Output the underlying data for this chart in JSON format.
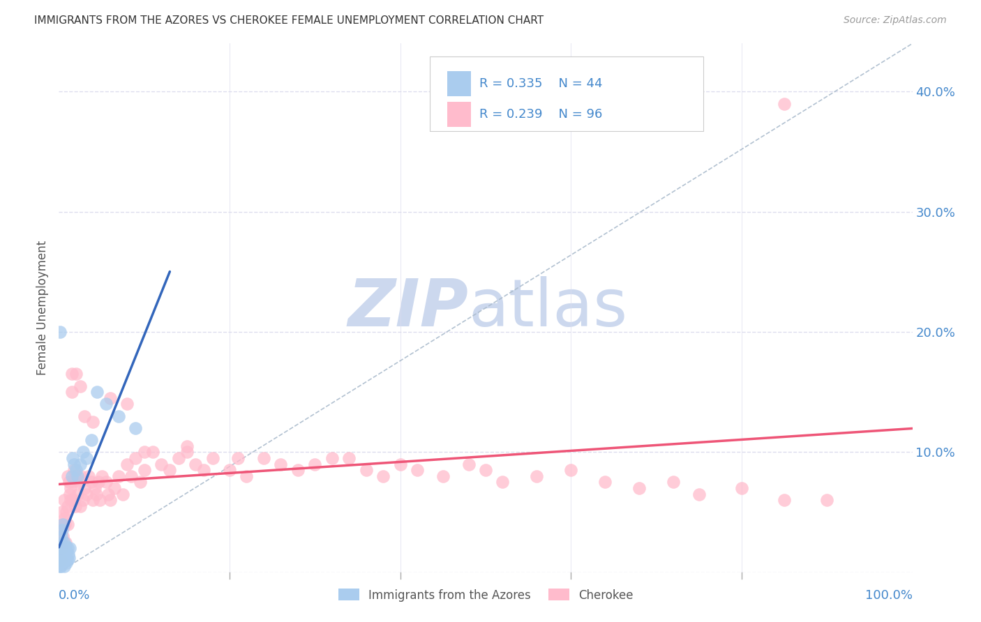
{
  "title": "IMMIGRANTS FROM THE AZORES VS CHEROKEE FEMALE UNEMPLOYMENT CORRELATION CHART",
  "source": "Source: ZipAtlas.com",
  "ylabel": "Female Unemployment",
  "series1_label": "Immigrants from the Azores",
  "series1_color": "#aaccee",
  "series1_edge": "#aaccee",
  "series1_R": 0.335,
  "series1_N": 44,
  "series2_label": "Cherokee",
  "series2_color": "#ffbbcc",
  "series2_edge": "#ffbbcc",
  "series2_R": 0.239,
  "series2_N": 96,
  "trend1_color": "#3366bb",
  "trend2_color": "#ee5577",
  "watermark_zip_color": "#ccd8ee",
  "watermark_atlas_color": "#ccd8ee",
  "ref_line_color": "#aabbcc",
  "grid_color": "#ddddee",
  "xlim": [
    0.0,
    1.0
  ],
  "ylim": [
    0.0,
    0.44
  ],
  "yticks": [
    0.0,
    0.1,
    0.2,
    0.3,
    0.4
  ],
  "ytick_labels": [
    "",
    "10.0%",
    "20.0%",
    "30.0%",
    "40.0%"
  ],
  "title_color": "#333333",
  "source_color": "#999999",
  "axis_label_color": "#4488cc",
  "ylabel_color": "#555555",
  "legend_text_color": "#4488cc",
  "bottom_legend_color": "#555555",
  "series1_x": [
    0.001,
    0.001,
    0.001,
    0.001,
    0.002,
    0.002,
    0.002,
    0.003,
    0.003,
    0.003,
    0.004,
    0.004,
    0.004,
    0.005,
    0.005,
    0.005,
    0.006,
    0.006,
    0.006,
    0.007,
    0.007,
    0.008,
    0.008,
    0.009,
    0.009,
    0.01,
    0.01,
    0.011,
    0.012,
    0.013,
    0.015,
    0.016,
    0.018,
    0.02,
    0.022,
    0.025,
    0.028,
    0.032,
    0.038,
    0.045,
    0.055,
    0.07,
    0.09,
    0.001
  ],
  "series1_y": [
    0.005,
    0.01,
    0.015,
    0.02,
    0.005,
    0.012,
    0.025,
    0.008,
    0.018,
    0.03,
    0.01,
    0.022,
    0.035,
    0.008,
    0.015,
    0.04,
    0.005,
    0.01,
    0.025,
    0.01,
    0.018,
    0.012,
    0.022,
    0.008,
    0.018,
    0.01,
    0.02,
    0.015,
    0.012,
    0.02,
    0.08,
    0.095,
    0.09,
    0.085,
    0.08,
    0.09,
    0.1,
    0.095,
    0.11,
    0.15,
    0.14,
    0.13,
    0.12,
    0.2
  ],
  "series2_x": [
    0.001,
    0.002,
    0.003,
    0.004,
    0.005,
    0.006,
    0.007,
    0.008,
    0.009,
    0.01,
    0.01,
    0.012,
    0.013,
    0.014,
    0.015,
    0.016,
    0.017,
    0.018,
    0.019,
    0.02,
    0.022,
    0.024,
    0.025,
    0.026,
    0.028,
    0.03,
    0.032,
    0.035,
    0.038,
    0.04,
    0.042,
    0.044,
    0.046,
    0.048,
    0.05,
    0.055,
    0.058,
    0.06,
    0.065,
    0.07,
    0.075,
    0.08,
    0.085,
    0.09,
    0.095,
    0.1,
    0.11,
    0.12,
    0.13,
    0.14,
    0.15,
    0.16,
    0.17,
    0.18,
    0.2,
    0.21,
    0.22,
    0.24,
    0.26,
    0.28,
    0.3,
    0.32,
    0.34,
    0.36,
    0.38,
    0.4,
    0.42,
    0.45,
    0.48,
    0.5,
    0.52,
    0.56,
    0.6,
    0.64,
    0.68,
    0.72,
    0.75,
    0.8,
    0.85,
    0.9,
    0.002,
    0.015,
    0.02,
    0.025,
    0.01,
    0.007,
    0.03,
    0.04,
    0.06,
    0.08,
    0.014,
    0.018,
    0.1,
    0.15,
    0.002,
    0.85
  ],
  "series2_y": [
    0.03,
    0.04,
    0.02,
    0.05,
    0.03,
    0.06,
    0.04,
    0.025,
    0.05,
    0.04,
    0.055,
    0.075,
    0.065,
    0.06,
    0.165,
    0.06,
    0.075,
    0.085,
    0.055,
    0.08,
    0.065,
    0.075,
    0.055,
    0.08,
    0.06,
    0.07,
    0.065,
    0.08,
    0.075,
    0.06,
    0.07,
    0.065,
    0.075,
    0.06,
    0.08,
    0.075,
    0.065,
    0.06,
    0.07,
    0.08,
    0.065,
    0.09,
    0.08,
    0.095,
    0.075,
    0.085,
    0.1,
    0.09,
    0.085,
    0.095,
    0.1,
    0.09,
    0.085,
    0.095,
    0.085,
    0.095,
    0.08,
    0.095,
    0.09,
    0.085,
    0.09,
    0.095,
    0.095,
    0.085,
    0.08,
    0.09,
    0.085,
    0.08,
    0.09,
    0.085,
    0.075,
    0.08,
    0.085,
    0.075,
    0.07,
    0.075,
    0.065,
    0.07,
    0.06,
    0.06,
    0.01,
    0.15,
    0.165,
    0.155,
    0.08,
    0.045,
    0.13,
    0.125,
    0.145,
    0.14,
    0.07,
    0.06,
    0.1,
    0.105,
    0.035,
    0.39
  ]
}
